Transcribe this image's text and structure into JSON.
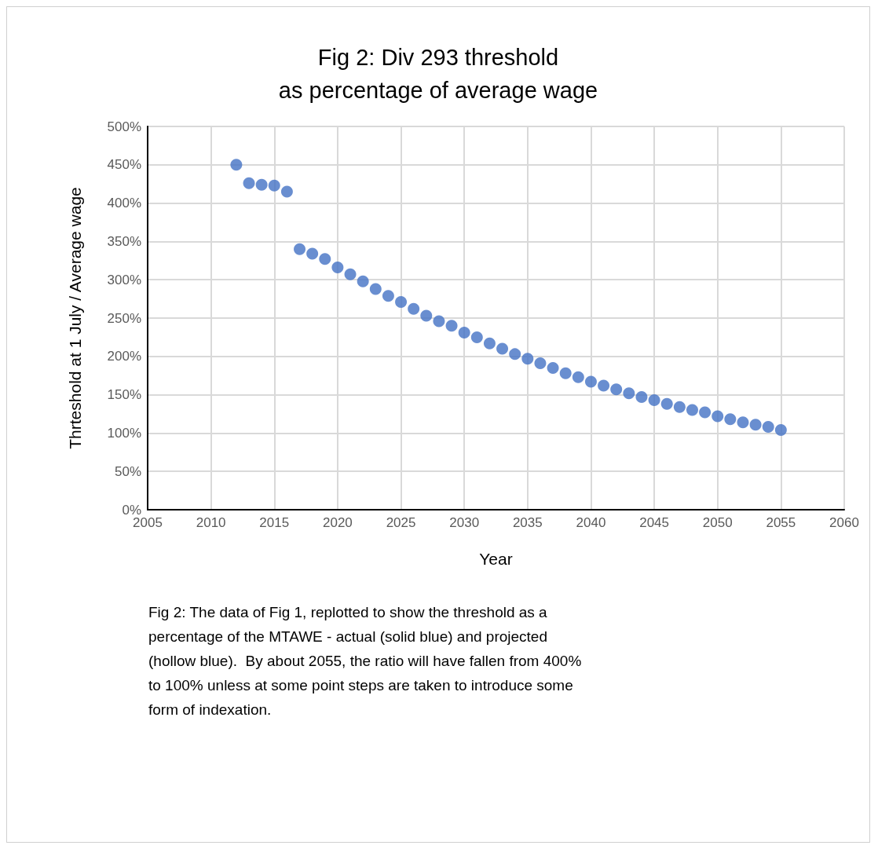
{
  "chart_data": {
    "type": "scatter",
    "title": "Fig 2: Div 293 threshold\nas percentage of average wage",
    "xlabel": "Year",
    "ylabel": "Thrteshold at 1 July / Average wage",
    "annotations": [
      "Fig 2: The data of Fig 1, replotted to show the threshold as a percentage of the MTAWE - actual (solid blue) and projected (hollow blue).  By about 2055, the ratio will have fallen from 400% to 100% unless at some point steps are taken to introduce some form of indexation."
    ],
    "series": [
      {
        "color": "#4472c4",
        "x": [
          2012,
          2013,
          2014,
          2015,
          2016,
          2017,
          2018,
          2019
        ],
        "values": [
          450,
          426,
          424,
          423,
          415,
          340,
          334,
          327
        ]
      },
      {
        "color": "#4472c4",
        "x": [
          2020,
          2021,
          2022,
          2023,
          2024,
          2025,
          2026,
          2027,
          2028,
          2029,
          2030,
          2031,
          2032,
          2033,
          2034,
          2035,
          2036,
          2037,
          2038,
          2039,
          2040,
          2041,
          2042,
          2043,
          2044,
          2045,
          2046,
          2047,
          2048,
          2049,
          2050,
          2051,
          2052,
          2053,
          2054,
          2055
        ],
        "values": [
          316,
          307,
          298,
          288,
          279,
          271,
          262,
          253,
          246,
          240,
          231,
          225,
          217,
          210,
          203,
          197,
          191,
          185,
          178,
          173,
          167,
          162,
          157,
          152,
          147,
          143,
          138,
          134,
          130,
          127,
          122,
          118,
          114,
          111,
          108,
          104
        ]
      }
    ],
    "xlim": [
      2005,
      2060
    ],
    "xticks": [
      2005,
      2010,
      2015,
      2020,
      2025,
      2030,
      2035,
      2040,
      2045,
      2050,
      2055,
      2060
    ],
    "ylim": [
      0,
      500
    ],
    "yticks": [
      {
        "value": 0,
        "label": "0%"
      },
      {
        "value": 50,
        "label": "50%"
      },
      {
        "value": 100,
        "label": "100%"
      },
      {
        "value": 150,
        "label": "150%"
      },
      {
        "value": 200,
        "label": "200%"
      },
      {
        "value": 250,
        "label": "250%"
      },
      {
        "value": 300,
        "label": "300%"
      },
      {
        "value": 350,
        "label": "350%"
      },
      {
        "value": 400,
        "label": "400%"
      },
      {
        "value": 450,
        "label": "450%"
      },
      {
        "value": 500,
        "label": "500%"
      }
    ],
    "grid": true,
    "marker": "circle"
  }
}
